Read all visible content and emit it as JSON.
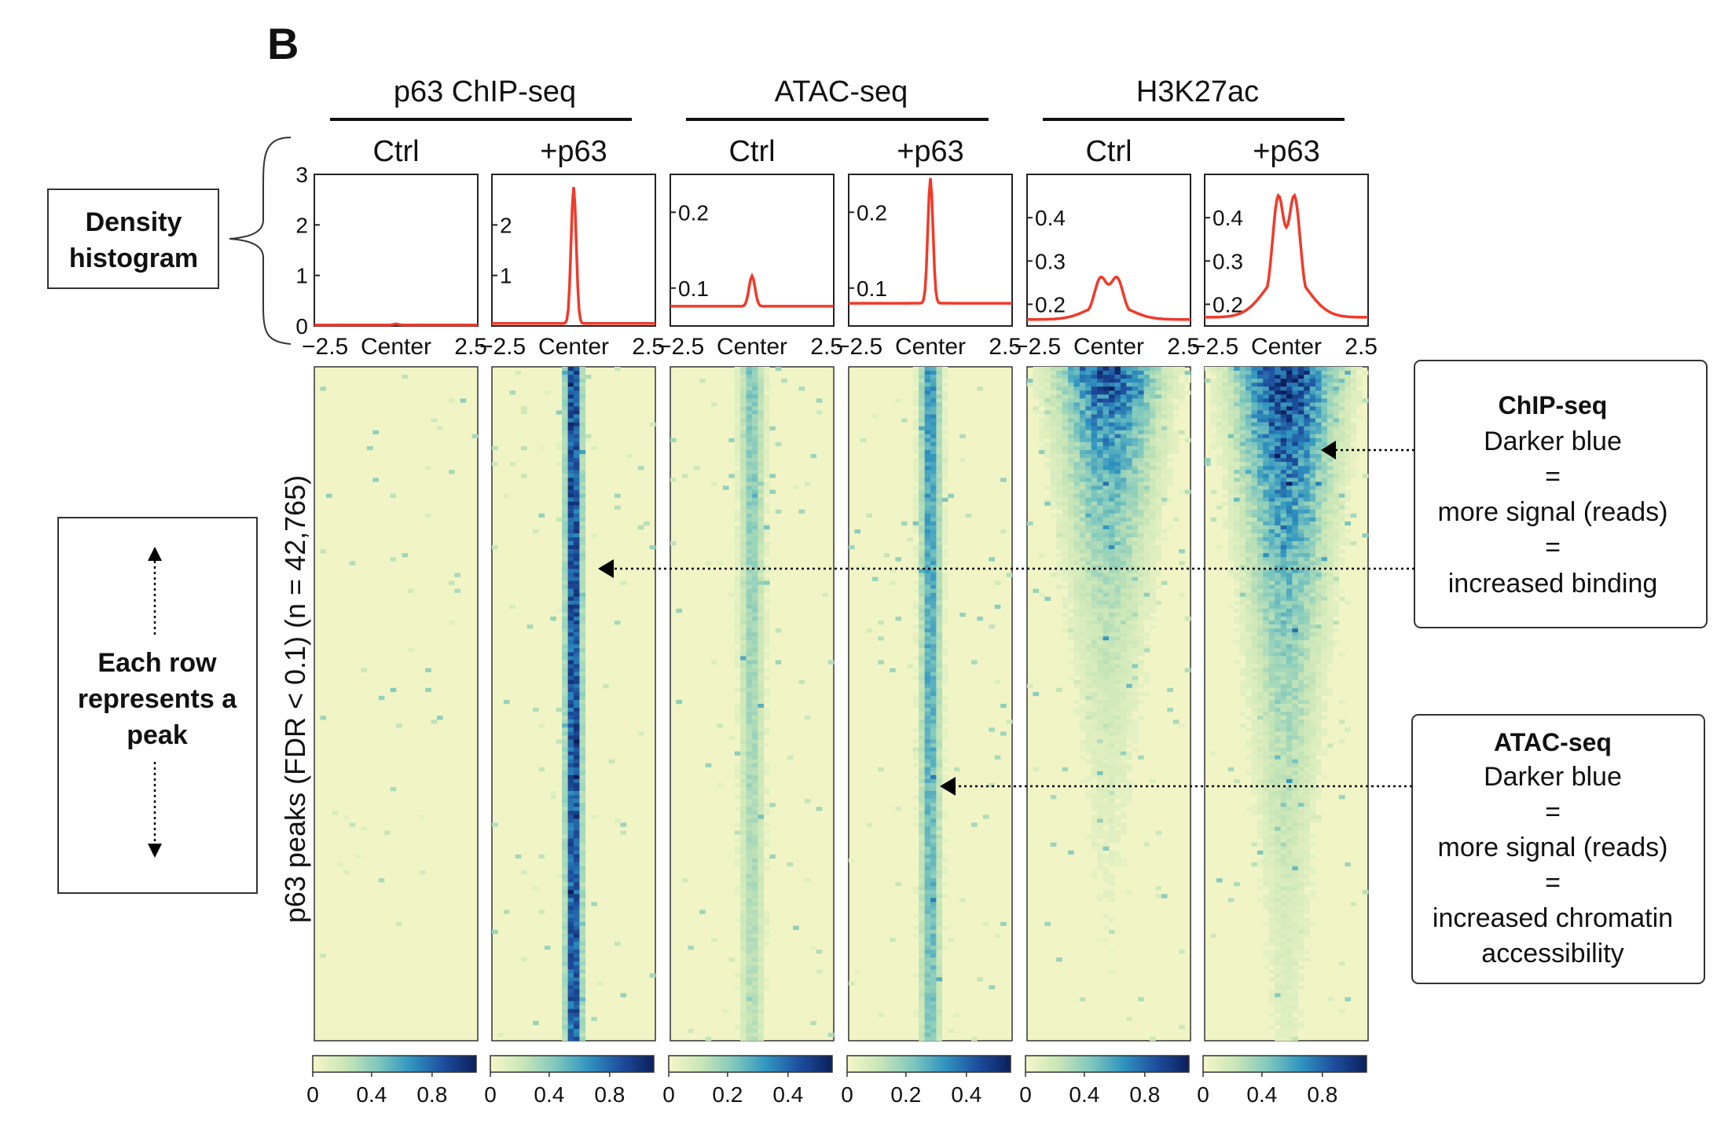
{
  "panel_letter": "B",
  "colormap": [
    "#f5f7c8",
    "#c9e6b7",
    "#7fc8bd",
    "#2f94c0",
    "#1d4e9e",
    "#0b1f5c"
  ],
  "line_color": "#f03a2a",
  "chart_data": {
    "type": "heatmap",
    "y_label": "p63 peaks (FDR < 0.1) (n = 42,765)",
    "groups": [
      {
        "title": "p63 ChIP-seq",
        "panels": [
          0,
          1
        ]
      },
      {
        "title": "ATAC-seq",
        "panels": [
          2,
          3
        ]
      },
      {
        "title": "H3K27ac",
        "panels": [
          4,
          5
        ]
      }
    ],
    "x_ticks": [
      "−2.5",
      "Center",
      "2.5"
    ],
    "panels": [
      {
        "condition": "Ctrl",
        "profile_ylim": [
          0,
          3
        ],
        "profile_yticks": [
          "0",
          "1",
          "2",
          "3"
        ],
        "profile_x": [
          -2.5,
          -1.5,
          -0.5,
          0,
          0.5,
          1.5,
          2.5
        ],
        "profile_y": [
          0.02,
          0.02,
          0.03,
          0.04,
          0.03,
          0.02,
          0.02
        ],
        "peak_shape": "single",
        "peak_height": 0.02,
        "baseline": 0.02,
        "peak_width": 0.1,
        "heat_intensity": 0.03,
        "heat_width": 0.05,
        "heat_decay": 0.0,
        "colorbar_ticks": [
          "0",
          "0.4",
          "0.8"
        ]
      },
      {
        "condition": "+p63",
        "profile_ylim": [
          0,
          3
        ],
        "profile_yticks": [
          "1",
          "2"
        ],
        "profile_x": [
          -2.5,
          -0.5,
          -0.2,
          0,
          0.2,
          0.5,
          2.5
        ],
        "profile_y": [
          0.05,
          0.08,
          0.9,
          2.75,
          0.9,
          0.08,
          0.05
        ],
        "peak_shape": "single",
        "peak_height": 2.7,
        "baseline": 0.05,
        "peak_width": 0.11,
        "heat_intensity": 0.95,
        "heat_width": 0.05,
        "heat_decay": 0.05,
        "colorbar_ticks": [
          "0",
          "0.4",
          "0.8"
        ]
      },
      {
        "condition": "Ctrl",
        "profile_ylim": [
          0.05,
          0.25
        ],
        "profile_yticks": [
          "0.1",
          "0.2"
        ],
        "profile_x": [
          -2.5,
          -0.5,
          -0.2,
          0,
          0.2,
          0.5,
          2.5
        ],
        "profile_y": [
          0.075,
          0.08,
          0.095,
          0.117,
          0.095,
          0.08,
          0.075
        ],
        "peak_shape": "single",
        "peak_height": 0.04,
        "baseline": 0.076,
        "peak_width": 0.13,
        "heat_intensity": 0.42,
        "heat_width": 0.07,
        "heat_decay": 0.55,
        "colorbar_ticks": [
          "0",
          "0.2",
          "0.4"
        ]
      },
      {
        "condition": "+p63",
        "profile_ylim": [
          0.05,
          0.25
        ],
        "profile_yticks": [
          "0.1",
          "0.2"
        ],
        "profile_x": [
          -2.5,
          -0.5,
          -0.2,
          0,
          0.2,
          0.5,
          2.5
        ],
        "profile_y": [
          0.08,
          0.085,
          0.12,
          0.245,
          0.12,
          0.085,
          0.08
        ],
        "peak_shape": "single",
        "peak_height": 0.165,
        "baseline": 0.08,
        "peak_width": 0.11,
        "heat_intensity": 0.65,
        "heat_width": 0.06,
        "heat_decay": 0.4,
        "colorbar_ticks": [
          "0",
          "0.2",
          "0.4"
        ]
      },
      {
        "condition": "Ctrl",
        "profile_ylim": [
          0.15,
          0.5
        ],
        "profile_yticks": [
          "0.2",
          "0.3",
          "0.4"
        ],
        "profile_x": [
          -2.5,
          -1.0,
          -0.3,
          -0.1,
          0.15,
          0.5,
          1.0,
          2.5
        ],
        "profile_y": [
          0.17,
          0.2,
          0.27,
          0.26,
          0.275,
          0.24,
          0.2,
          0.17
        ],
        "peak_shape": "double",
        "peak_height": 0.105,
        "baseline": 0.165,
        "peak_width": 0.26,
        "heat_intensity": 0.9,
        "heat_width": 0.22,
        "heat_decay": 1.6,
        "colorbar_ticks": [
          "0",
          "0.4",
          "0.8"
        ]
      },
      {
        "condition": "+p63",
        "profile_ylim": [
          0.15,
          0.5
        ],
        "profile_yticks": [
          "0.2",
          "0.3",
          "0.4"
        ],
        "profile_x": [
          -2.5,
          -1.0,
          -0.3,
          -0.1,
          0.15,
          0.5,
          1.0,
          2.5
        ],
        "profile_y": [
          0.17,
          0.22,
          0.47,
          0.36,
          0.47,
          0.3,
          0.22,
          0.17
        ],
        "peak_shape": "double",
        "peak_height": 0.305,
        "baseline": 0.17,
        "peak_width": 0.24,
        "heat_intensity": 1.0,
        "heat_width": 0.2,
        "heat_decay": 1.1,
        "colorbar_ticks": [
          "0",
          "0.4",
          "0.8"
        ]
      }
    ]
  },
  "annotations": {
    "density_box": {
      "lines": [
        "Density",
        "histogram"
      ]
    },
    "row_box": {
      "lines": [
        "Each row",
        "represents a",
        "peak"
      ]
    },
    "chip_box": {
      "title": "ChIP-seq",
      "lines": [
        "Darker blue",
        "=",
        "more signal (reads)",
        "=",
        "increased binding"
      ]
    },
    "atac_box": {
      "title": "ATAC-seq",
      "lines": [
        "Darker blue",
        "=",
        "more signal (reads)",
        "=",
        "increased chromatin",
        "accessibility"
      ]
    }
  }
}
